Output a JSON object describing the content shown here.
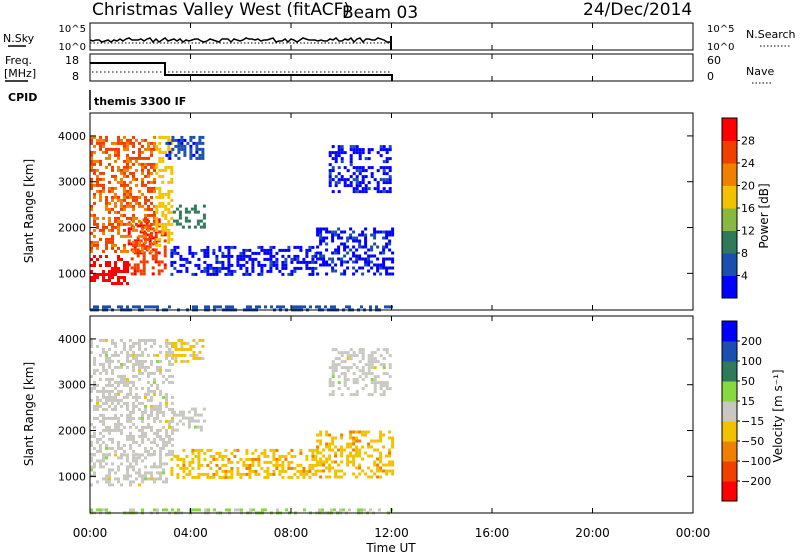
{
  "header": {
    "station": "Christmas Valley West (fitACF)",
    "beam": "Beam 03",
    "date": "24/Dec/2014"
  },
  "top_panels": {
    "nsky_label": "N.Sky",
    "nsky_ticks": [
      "10^5",
      "10^0"
    ],
    "nsearch_label": "N.Search",
    "freq_label": "Freq.",
    "freq_unit": "[MHz]",
    "freq_ticks": [
      "18",
      "8"
    ],
    "nave_label": "Nave",
    "nave_ticks": [
      "60",
      "0"
    ],
    "cpid_label": "CPID",
    "cpid_value": "themis 3300 IF"
  },
  "colors": {
    "power_scale": [
      "#0000ff",
      "#1a4fb0",
      "#2f7a5a",
      "#88b840",
      "#f2c200",
      "#f08000",
      "#f04000",
      "#ff0000"
    ],
    "velocity_scale": [
      "#ff0000",
      "#f04000",
      "#f08000",
      "#f2c200",
      "#c8c8c0",
      "#88d840",
      "#2f7a5a",
      "#1a4fb0",
      "#0000ff"
    ]
  },
  "chart_data": [
    {
      "type": "heatmap",
      "name": "power",
      "ylabel": "Slant Range [km]",
      "y_ticks": [
        "1000",
        "2000",
        "3000",
        "4000"
      ],
      "ylim": [
        200,
        4500
      ],
      "colorbar_label": "Power [dB]",
      "colorbar_ticks": [
        "4",
        "8",
        "12",
        "16",
        "20",
        "24",
        "28"
      ],
      "clim": [
        0,
        32
      ],
      "regions": [
        {
          "t": [
            0.0,
            1.5
          ],
          "r": [
            800,
            1400
          ],
          "value": 30
        },
        {
          "t": [
            1.5,
            3.0
          ],
          "r": [
            1000,
            2200
          ],
          "value": 27
        },
        {
          "t": [
            0.0,
            2.6
          ],
          "r": [
            1500,
            4000
          ],
          "value": 24
        },
        {
          "t": [
            2.6,
            3.3
          ],
          "r": [
            1600,
            4000
          ],
          "value": 18
        },
        {
          "t": [
            3.3,
            4.5
          ],
          "r": [
            2000,
            2500
          ],
          "value": 10
        },
        {
          "t": [
            3.0,
            4.5
          ],
          "r": [
            3500,
            4000
          ],
          "value": 5
        },
        {
          "t": [
            3.2,
            9.0
          ],
          "r": [
            1000,
            1600
          ],
          "value": 3
        },
        {
          "t": [
            9.0,
            12.0
          ],
          "r": [
            1000,
            2000
          ],
          "value": 3
        },
        {
          "t": [
            9.5,
            12.0
          ],
          "r": [
            2800,
            3800
          ],
          "value": 3
        },
        {
          "t": [
            0.0,
            12.0
          ],
          "r": [
            200,
            300
          ],
          "value": 6
        }
      ]
    },
    {
      "type": "heatmap",
      "name": "velocity",
      "ylabel": "Slant Range [km]",
      "y_ticks": [
        "1000",
        "2000",
        "3000",
        "4000"
      ],
      "ylim": [
        200,
        4500
      ],
      "colorbar_label": "Velocity [m s⁻¹]",
      "colorbar_ticks": [
        "200",
        "100",
        "50",
        "15",
        "−15",
        "−50",
        "−100",
        "−200"
      ],
      "clim": [
        -250,
        250
      ],
      "regions": [
        {
          "t": [
            0.0,
            3.0
          ],
          "r": [
            800,
            1500
          ],
          "value": 0
        },
        {
          "t": [
            0.0,
            3.3
          ],
          "r": [
            1500,
            4000
          ],
          "value": 0
        },
        {
          "t": [
            3.3,
            4.5
          ],
          "r": [
            2000,
            2500
          ],
          "value": 0
        },
        {
          "t": [
            3.0,
            4.5
          ],
          "r": [
            3500,
            4000
          ],
          "value": -40
        },
        {
          "t": [
            3.2,
            9.0
          ],
          "r": [
            1000,
            1600
          ],
          "value": -60
        },
        {
          "t": [
            9.0,
            12.0
          ],
          "r": [
            1000,
            2000
          ],
          "value": -60
        },
        {
          "t": [
            9.5,
            12.0
          ],
          "r": [
            2800,
            3800
          ],
          "value": 0
        },
        {
          "t": [
            0.0,
            12.0
          ],
          "r": [
            200,
            300
          ],
          "value": 30
        }
      ]
    }
  ],
  "x_axis": {
    "label": "Time UT",
    "ticks": [
      "00:00",
      "04:00",
      "08:00",
      "12:00",
      "16:00",
      "20:00",
      "00:00"
    ],
    "xlim": [
      0,
      24
    ]
  }
}
